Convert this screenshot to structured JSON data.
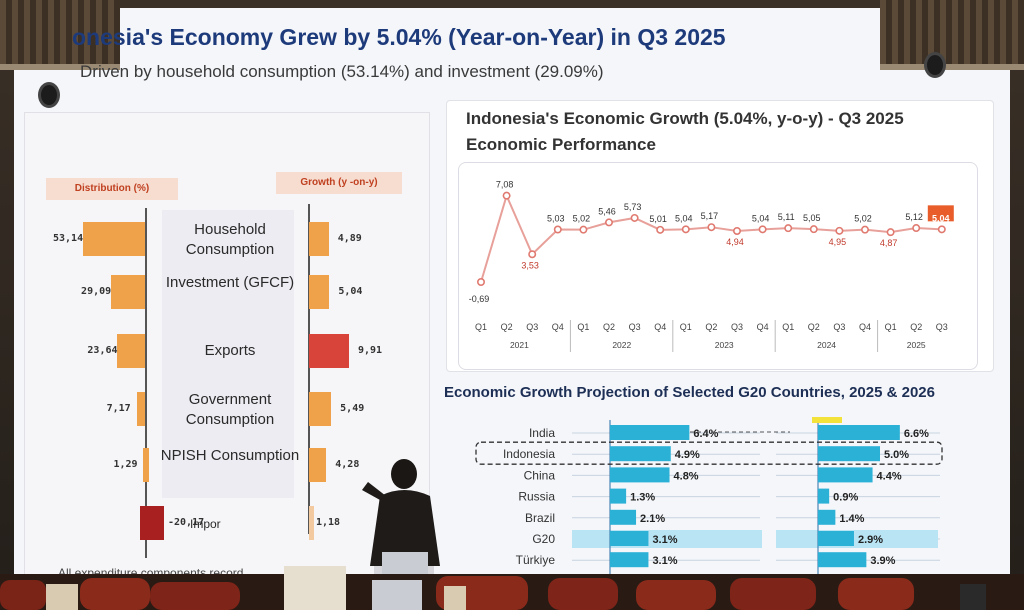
{
  "slide": {
    "title": "onesia's Economy Grew by 5.04% (Year-on-Year) in Q3 2025",
    "subtitle": "Driven by household consumption (53.14%) and investment (29.09%)",
    "footnote": "All expenditure components record"
  },
  "breakdown": {
    "distribution_header": "Distribution (%)",
    "growth_header": "Growth (y -on-y)",
    "rows": [
      {
        "label": "Household Consumption",
        "distribution": "53,14",
        "growth": "4,89",
        "dist_value": 53.14,
        "growth_value": 4.89
      },
      {
        "label": "Investment (GFCF)",
        "distribution": "29,09",
        "growth": "5,04",
        "dist_value": 29.09,
        "growth_value": 5.04
      },
      {
        "label": "Exports",
        "distribution": "23,64",
        "growth": "9,91",
        "dist_value": 23.64,
        "growth_value": 9.91
      },
      {
        "label": "Government Consumption",
        "distribution": "7,17",
        "growth": "5,49",
        "dist_value": 7.17,
        "growth_value": 5.49
      },
      {
        "label": "NPISH Consumption",
        "distribution": "1,29",
        "growth": "4,28",
        "dist_value": 1.29,
        "growth_value": 4.28
      },
      {
        "label": "Impor",
        "distribution": "-20,17",
        "growth": "1,18",
        "dist_value": -20.17,
        "growth_value": 1.18
      }
    ]
  },
  "growth_chart": {
    "title": "Indonesia's Economic Growth (5.04%, y-o-y) - Q3 2025",
    "subtitle": "Economic Performance"
  },
  "projection": {
    "title": "Economic Growth Projection of Selected G20 Countries, 2025 & 2026"
  },
  "chart_data": [
    {
      "type": "line",
      "x": [
        "Q1 2021",
        "Q2 2021",
        "Q3 2021",
        "Q4 2021",
        "Q1 2022",
        "Q2 2022",
        "Q3 2022",
        "Q4 2022",
        "Q1 2023",
        "Q2 2023",
        "Q3 2023",
        "Q4 2023",
        "Q1 2024",
        "Q2 2024",
        "Q3 2024",
        "Q4 2024",
        "Q1 2025",
        "Q2 2025",
        "Q3 2025"
      ],
      "quarter_labels": [
        "Q1",
        "Q2",
        "Q3",
        "Q4",
        "Q1",
        "Q2",
        "Q3",
        "Q4",
        "Q1",
        "Q2",
        "Q3",
        "Q4",
        "Q1",
        "Q2",
        "Q3",
        "Q4",
        "Q1",
        "Q2",
        "Q3"
      ],
      "year_labels": [
        "2021",
        "2022",
        "2023",
        "2024",
        "2025"
      ],
      "series": [
        {
          "values": [
            -0.69,
            7.08,
            3.53,
            5.03,
            5.02,
            5.46,
            5.73,
            5.01,
            5.04,
            5.17,
            4.94,
            5.04,
            5.11,
            5.05,
            4.95,
            5.02,
            4.87,
            5.12,
            5.04
          ]
        }
      ],
      "point_labels": [
        "-0,69",
        "7,08",
        "3,53",
        "5,03",
        "5,02",
        "5,46",
        "5,73",
        "5,01",
        "5,04",
        "5,17",
        "4,94",
        "5,04",
        "5,11",
        "5,05",
        "4,95",
        "5,02",
        "4,87",
        "5,12",
        "5,04"
      ],
      "highlight_index": 18,
      "colors": {
        "line": "#e8a09a",
        "label": "#333333",
        "low_label": "#c0392b",
        "highlight": "#e85d2a"
      }
    },
    {
      "type": "bar",
      "categories": [
        "India",
        "Indonesia",
        "China",
        "Russia",
        "Brazil",
        "G20",
        "Türkiye"
      ],
      "series": [
        {
          "values": [
            6.4,
            4.9,
            4.8,
            1.3,
            2.1,
            3.1,
            3.1
          ],
          "labels": [
            "6.4%",
            "4.9%",
            "4.8%",
            "1.3%",
            "2.1%",
            "3.1%",
            "3.1%"
          ]
        },
        {
          "values": [
            6.6,
            5.0,
            4.4,
            0.9,
            1.4,
            2.9,
            3.9
          ],
          "labels": [
            "6.6%",
            "5.0%",
            "4.4%",
            "0.9%",
            "1.4%",
            "2.9%",
            "3.9%"
          ]
        }
      ],
      "highlight_category": "Indonesia",
      "colors": {
        "bar": "#2bb0d6",
        "row_band": "#b9e4f4"
      }
    }
  ]
}
